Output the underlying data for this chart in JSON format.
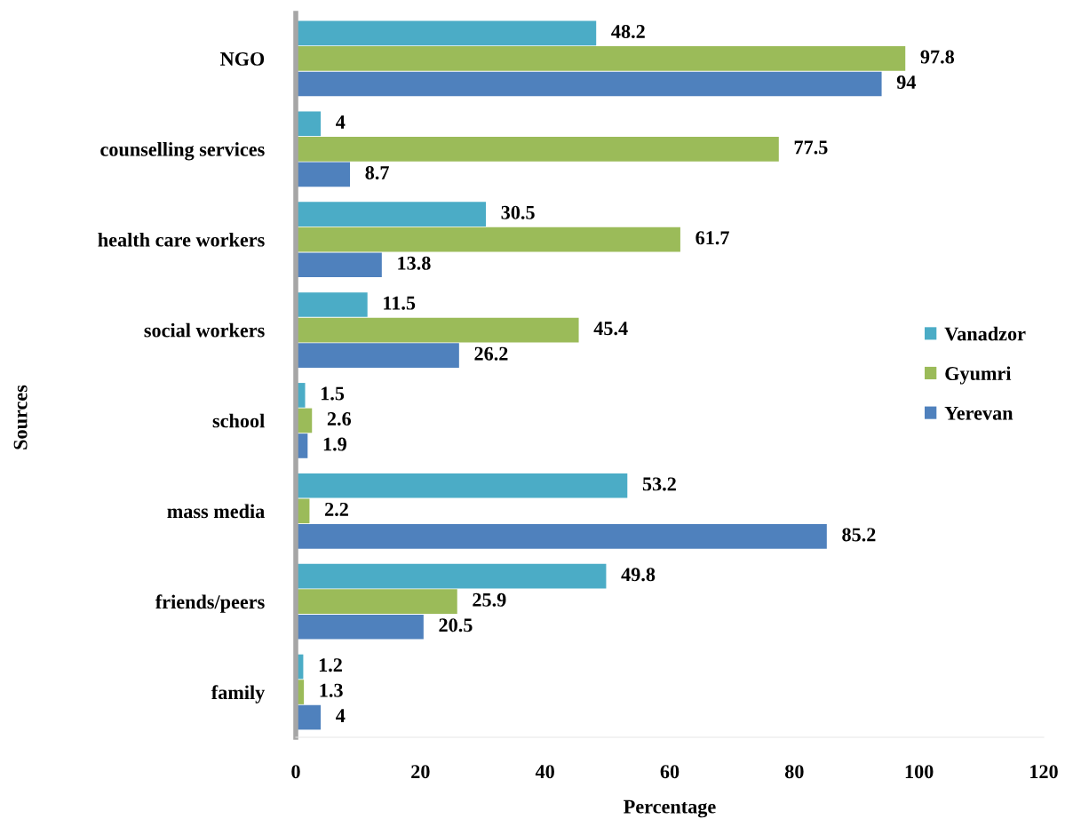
{
  "chart_data": {
    "type": "bar",
    "orientation": "horizontal",
    "xlabel": "Percentage",
    "ylabel": "Sources",
    "categories": [
      "NGO",
      "counselling services",
      "health care workers",
      "social workers",
      "school",
      "mass media",
      "friends/peers",
      "family"
    ],
    "series": [
      {
        "name": "Vanadzor",
        "color": "#4bacc6",
        "values": [
          48.2,
          4,
          30.5,
          11.5,
          1.5,
          53.2,
          49.8,
          1.2
        ]
      },
      {
        "name": "Gyumri",
        "color": "#9bbb59",
        "values": [
          97.8,
          77.5,
          61.7,
          45.4,
          2.6,
          2.2,
          25.9,
          1.3
        ]
      },
      {
        "name": "Yerevan",
        "color": "#4f81bd",
        "values": [
          94,
          8.7,
          13.8,
          26.2,
          1.9,
          85.2,
          20.5,
          4
        ]
      }
    ],
    "xlim": [
      0,
      120
    ],
    "xticks": [
      0,
      20,
      40,
      60,
      80,
      100,
      120
    ],
    "data_labels": true,
    "grid": false,
    "legend": "right"
  }
}
